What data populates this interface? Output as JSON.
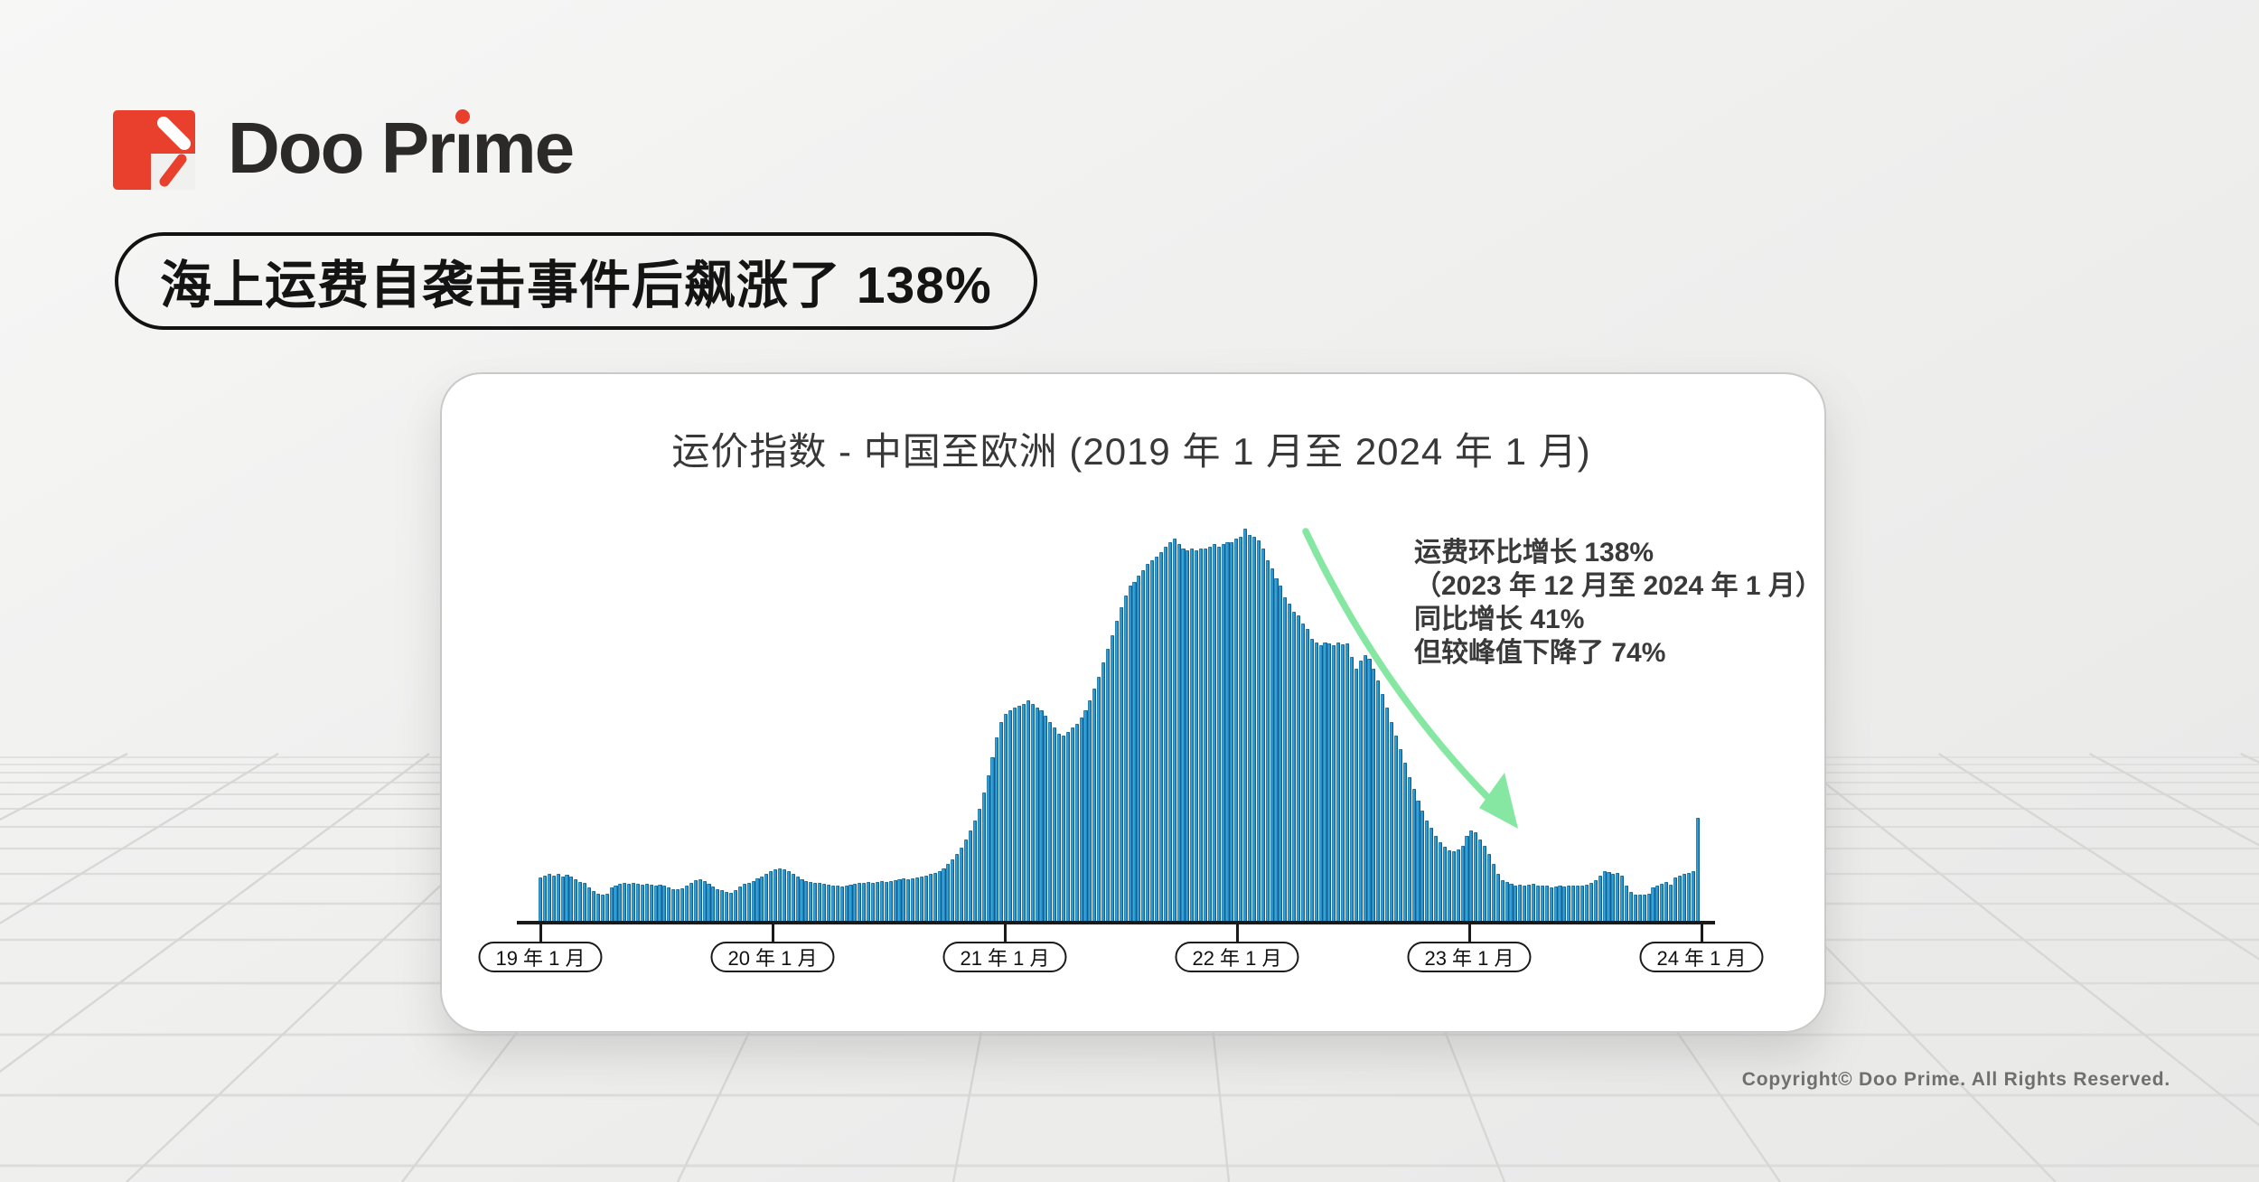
{
  "logo": {
    "brand": "Doo Prime",
    "mark_color": "#e8402d",
    "text_before_i": "Doo Pr",
    "dotless_i": "ı",
    "text_after_i": "me"
  },
  "headline": {
    "text": "海上运费自袭击事件后飙涨了 138%"
  },
  "card": {
    "title": "运价指数 - 中国至欧洲 (2019 年 1 月至 2024 年 1 月)",
    "annotation": {
      "lines": [
        "运费环比增长 138%",
        "（2023 年 12 月至 2024 年 1 月）",
        "同比增长 41%",
        "但较峰值下降了 74%"
      ],
      "arrow_color": "#85e7a2"
    }
  },
  "footer": {
    "copyright": "Copyright© Doo Prime. All Rights Reserved."
  },
  "chart_data": {
    "type": "bar",
    "title": "运价指数 - 中国至欧洲 (2019 年 1 月至 2024 年 1 月)",
    "x_unit": "week",
    "x_range": [
      "2019-01",
      "2024-01"
    ],
    "x_tick_labels": [
      "19 年 1 月",
      "20 年 1 月",
      "21 年 1 月",
      "22 年 1 月",
      "23 年 1 月",
      "24 年 1 月"
    ],
    "y_unit": "percent_of_peak",
    "ylim": [
      0,
      100
    ],
    "grid": false,
    "bar_color": "#2ea3db",
    "annotations": {
      "text_lines": [
        "运费环比增长 138%",
        "（2023 年 12 月至 2024 年 1 月）",
        "同比增长 41%",
        "但较峰值下降了 74%"
      ],
      "mom_change_pct": 138,
      "yoy_change_pct": 41,
      "below_peak_pct": -74
    },
    "values_pct_of_peak": [
      11.5,
      12,
      12.4,
      12,
      12.5,
      11.8,
      12.2,
      11.6,
      11,
      10.4,
      10,
      9,
      8,
      7.3,
      7,
      7.4,
      9,
      9.5,
      9.8,
      10,
      9.8,
      10,
      9.8,
      9.6,
      9.8,
      9.6,
      9.4,
      9.6,
      9.5,
      9,
      8.6,
      8.4,
      8.7,
      9.5,
      10.2,
      10.8,
      11,
      10.5,
      9.8,
      9.2,
      8.6,
      8.2,
      7.8,
      7.5,
      8.3,
      9.2,
      9.8,
      10,
      10.6,
      11.2,
      11.8,
      12.4,
      13,
      13.6,
      13.8,
      13.5,
      13,
      12.4,
      11.6,
      11,
      10.6,
      10.4,
      10.2,
      10,
      9.8,
      9.6,
      9.5,
      9.3,
      9.2,
      9.4,
      9.6,
      9.8,
      10,
      10.2,
      10.3,
      10.2,
      10.4,
      10.5,
      10.4,
      10.6,
      10.8,
      11,
      11.2,
      11.1,
      11.3,
      11.5,
      11.8,
      12,
      12.3,
      12.6,
      13,
      13.8,
      14.8,
      16,
      17.5,
      19,
      21,
      23.5,
      26,
      29,
      33,
      37.5,
      42,
      47,
      51,
      53,
      54,
      54.5,
      55,
      55.5,
      56.5,
      55.5,
      54.5,
      54,
      52.5,
      51,
      49.5,
      48,
      47.5,
      48.5,
      49.5,
      50.5,
      52,
      54,
      56.5,
      59.5,
      62.5,
      66,
      69.5,
      73,
      76.5,
      80,
      83,
      85.5,
      86.5,
      88,
      89.5,
      91,
      92,
      93,
      94,
      95.5,
      96.5,
      97.5,
      96,
      95,
      94.5,
      95,
      94.5,
      95,
      95,
      95.5,
      96,
      95.5,
      96,
      96.5,
      96.5,
      97.5,
      98,
      100,
      98.5,
      98,
      97,
      95,
      92,
      90,
      87.5,
      85.5,
      82.5,
      81,
      79,
      78,
      76,
      74.5,
      72,
      71,
      70.5,
      71,
      70.8,
      70.5,
      71,
      70.6,
      70.8,
      67.5,
      64.5,
      66.5,
      68,
      67,
      64.5,
      61.5,
      58,
      54.5,
      51,
      47.5,
      44,
      40.5,
      37,
      34,
      31,
      28.5,
      26,
      24,
      22,
      20.5,
      19.2,
      18.4,
      18.2,
      18.6,
      19.5,
      22,
      23.5,
      23,
      21,
      19.5,
      17.5,
      15,
      12.5,
      10.8,
      10.3,
      9.8,
      9.5,
      9.7,
      9.4,
      9.6,
      9.8,
      9.5,
      9.3,
      9.5,
      8.9,
      9.1,
      9.3,
      9.2,
      9.4,
      9.3,
      9.5,
      9.4,
      9.6,
      10,
      10.8,
      12,
      13,
      12.8,
      12.5,
      12.6,
      12,
      9.5,
      7.8,
      7.2,
      7,
      7.2,
      7.4,
      8.9,
      9.4,
      9.8,
      10.3,
      9.6,
      11.5,
      12,
      12.3,
      12.6,
      13,
      26.5
    ]
  }
}
